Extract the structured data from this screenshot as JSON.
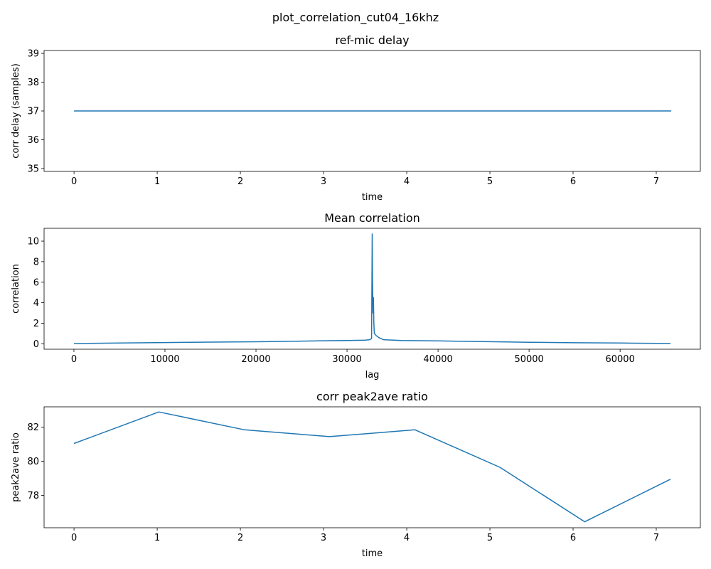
{
  "figure": {
    "suptitle": "plot_correlation_cut04_16khz"
  },
  "chart_data": [
    {
      "type": "line",
      "title": "ref-mic delay",
      "xlabel": "time",
      "ylabel": "corr delay (samples)",
      "xlim": [
        -0.36,
        7.53
      ],
      "ylim": [
        34.9,
        39.1
      ],
      "xticks": [
        0,
        1,
        2,
        3,
        4,
        5,
        6,
        7
      ],
      "yticks": [
        35,
        36,
        37,
        38,
        39
      ],
      "grid": false,
      "color": "#1f77b4",
      "series": [
        {
          "x": [
            0,
            7.18
          ],
          "y": [
            37,
            37
          ]
        }
      ]
    },
    {
      "type": "line",
      "title": "Mean correlation",
      "xlabel": "lag",
      "ylabel": "correlation",
      "xlim": [
        -3277,
        68812
      ],
      "ylim": [
        -0.53,
        11.25
      ],
      "xticks": [
        0,
        10000,
        20000,
        30000,
        40000,
        50000,
        60000
      ],
      "yticks": [
        0,
        2,
        4,
        6,
        8,
        10
      ],
      "grid": false,
      "color": "#1f77b4",
      "series": [
        {
          "x": [
            0,
            5000,
            10000,
            15000,
            20000,
            25000,
            28000,
            30000,
            32000,
            32500,
            32700,
            32768,
            32800,
            32850,
            32900,
            32950,
            33000,
            33200,
            33500,
            34000,
            36000,
            40000,
            45000,
            50000,
            55000,
            60000,
            65535
          ],
          "y": [
            0.02,
            0.08,
            0.12,
            0.16,
            0.2,
            0.26,
            0.3,
            0.32,
            0.35,
            0.4,
            0.5,
            10.7,
            6.5,
            3.0,
            4.5,
            2.0,
            1.0,
            0.8,
            0.6,
            0.4,
            0.32,
            0.28,
            0.22,
            0.15,
            0.1,
            0.07,
            0.03
          ]
        }
      ]
    },
    {
      "type": "line",
      "title": "corr peak2ave ratio",
      "xlabel": "time",
      "ylabel": "peak2ave ratio",
      "xlim": [
        -0.36,
        7.53
      ],
      "ylim": [
        76.1,
        83.2
      ],
      "xticks": [
        0,
        1,
        2,
        3,
        4,
        5,
        6,
        7
      ],
      "yticks": [
        78,
        80,
        82
      ],
      "grid": false,
      "color": "#1f77b4",
      "series": [
        {
          "x": [
            0,
            1.02,
            2.05,
            3.07,
            4.1,
            5.12,
            6.14,
            7.17
          ],
          "y": [
            81.05,
            82.9,
            81.85,
            81.45,
            81.85,
            79.65,
            76.45,
            78.95
          ]
        }
      ]
    }
  ]
}
